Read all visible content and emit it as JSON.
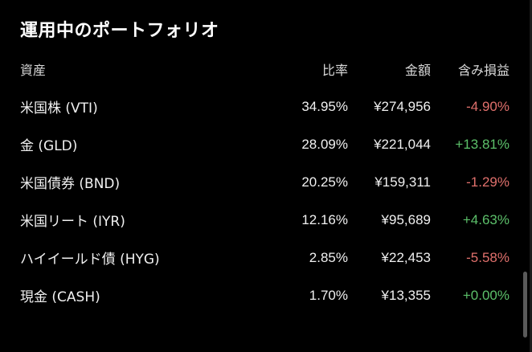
{
  "portfolio": {
    "title": "運用中のポートフォリオ",
    "columns": {
      "asset": "資産",
      "ratio": "比率",
      "amount": "金額",
      "pnl": "含み損益"
    },
    "colors": {
      "negative": "#e0706c",
      "positive": "#5cc06a"
    },
    "rows": [
      {
        "asset": "米国株 (VTI)",
        "ratio": "34.95%",
        "amount": "¥274,956",
        "pnl": "-4.90%",
        "trend": "negative"
      },
      {
        "asset": "金 (GLD)",
        "ratio": "28.09%",
        "amount": "¥221,044",
        "pnl": "+13.81%",
        "trend": "positive"
      },
      {
        "asset": "米国債券 (BND)",
        "ratio": "20.25%",
        "amount": "¥159,311",
        "pnl": "-1.29%",
        "trend": "negative"
      },
      {
        "asset": "米国リート (IYR)",
        "ratio": "12.16%",
        "amount": "¥95,689",
        "pnl": "+4.63%",
        "trend": "positive"
      },
      {
        "asset": "ハイイールド債 (HYG)",
        "ratio": "2.85%",
        "amount": "¥22,453",
        "pnl": "-5.58%",
        "trend": "negative"
      },
      {
        "asset": "現金 (CASH)",
        "ratio": "1.70%",
        "amount": "¥13,355",
        "pnl": "+0.00%",
        "trend": "positive"
      }
    ]
  }
}
